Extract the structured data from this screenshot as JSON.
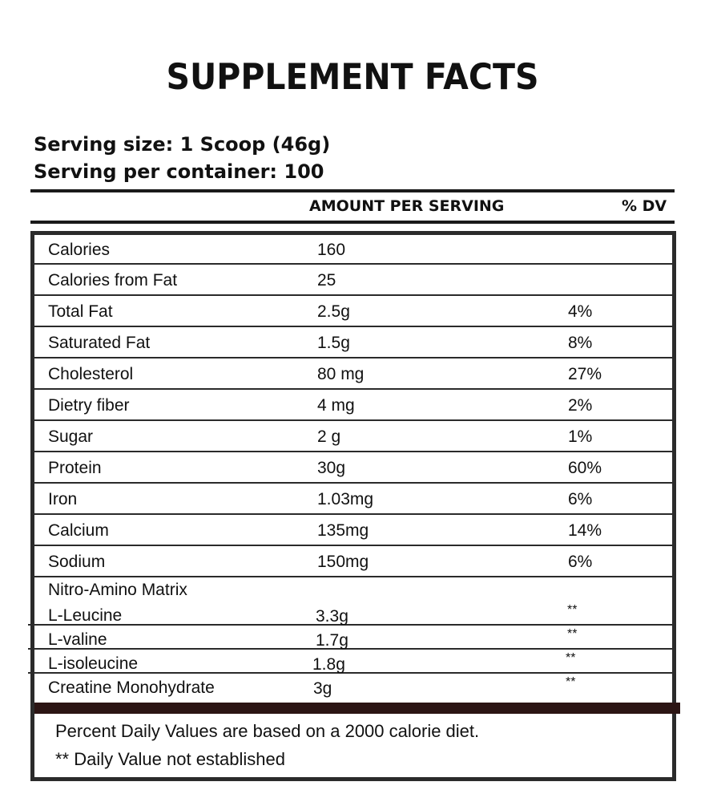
{
  "title": "SUPPLEMENT FACTS",
  "serving_size": "Serving size: 1 Scoop (46g)",
  "servings_per_container": "Serving per container: 100",
  "header": {
    "amount": "AMOUNT PER SERVING",
    "dv": "% DV"
  },
  "rows": [
    {
      "name": "Calories",
      "amount": "160",
      "dv": ""
    },
    {
      "name": "Calories from Fat",
      "amount": "25",
      "dv": ""
    },
    {
      "name": "Total Fat",
      "amount": "2.5g",
      "dv": "4%"
    },
    {
      "name": "Saturated Fat",
      "amount": "1.5g",
      "dv": "8%"
    },
    {
      "name": "Cholesterol",
      "amount": "80 mg",
      "dv": "27%"
    },
    {
      "name": "Dietry fiber",
      "amount": "4 mg",
      "dv": "2%"
    },
    {
      "name": "Sugar",
      "amount": "2 g",
      "dv": "1%"
    },
    {
      "name": "Protein",
      "amount": "30g",
      "dv": "60%"
    },
    {
      "name": "Iron",
      "amount": "1.03mg",
      "dv": "6%"
    },
    {
      "name": "Calcium",
      "amount": "135mg",
      "dv": "14%"
    },
    {
      "name": "Sodium",
      "amount": "150mg",
      "dv": "6%"
    }
  ],
  "matrix_title": "Nitro-Amino Matrix",
  "matrix_rows": [
    {
      "name": "L-Leucine",
      "amount": "3.3g",
      "dv": "**"
    },
    {
      "name": "L-valine",
      "amount": "1.7g",
      "dv": "**"
    },
    {
      "name": "L-isoleucine",
      "amount": "1.8g",
      "dv": "**"
    },
    {
      "name": "Creatine Monohydrate",
      "amount": "3g",
      "dv": "**"
    }
  ],
  "footnote1": "Percent Daily Values are based on a 2000 calorie diet.",
  "footnote2": "** Daily Value not established",
  "colors": {
    "border": "#2b2b2b",
    "bar": "#2c1514"
  }
}
